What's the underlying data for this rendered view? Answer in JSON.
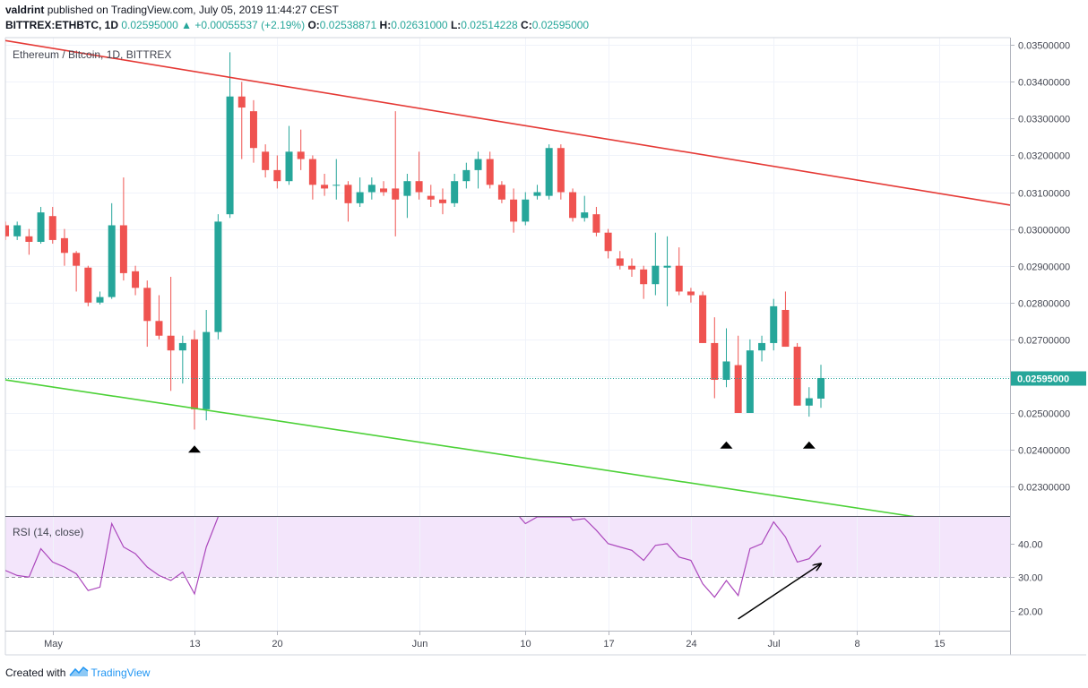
{
  "header": {
    "user": "valdrint",
    "published_text": "published on TradingView.com, July 05, 2019 11:44:27 CEST",
    "symbol": "BITTREX:ETHBTC, 1D",
    "last": "0.02595000",
    "change": "+0.00055537 (+2.19%)",
    "open_label": "O:",
    "open": "0.02538871",
    "high_label": "H:",
    "high": "0.02631000",
    "low_label": "L:",
    "low": "0.02514228",
    "close_label": "C:",
    "close": "0.02595000"
  },
  "footer": {
    "created_with": "Created with",
    "brand": "TradingView"
  },
  "colors": {
    "up": "#26a69a",
    "down": "#ef5350",
    "resistance": "#e53935",
    "support": "#4cd137",
    "rsi_line": "#ab47bc",
    "rsi_band": "#f3e5fb",
    "price_line": "#26a69a",
    "marker": "#000000",
    "arrow": "#000000"
  },
  "chart_data": [
    {
      "type": "candlestick",
      "title": "Ethereum / Bitcoin, 1D, BITTREX",
      "ylim": [
        0.0222,
        0.0352
      ],
      "y_ticks": [
        0.023,
        0.024,
        0.025,
        0.026,
        0.027,
        0.028,
        0.029,
        0.03,
        0.031,
        0.032,
        0.033,
        0.034,
        0.035
      ],
      "y_tick_labels": [
        "0.02300000",
        "0.02400000",
        "0.02500000",
        "0.02600000",
        "0.02700000",
        "0.02800000",
        "0.02900000",
        "0.03000000",
        "0.03100000",
        "0.03200000",
        "0.03300000",
        "0.03400000",
        "0.03500000"
      ],
      "x_tick_labels": [
        {
          "day": 1,
          "label": "May"
        },
        {
          "day": 13,
          "label": "13"
        },
        {
          "day": 20,
          "label": "20"
        },
        {
          "day": 32,
          "label": "Jun"
        },
        {
          "day": 41,
          "label": "10"
        },
        {
          "day": 48,
          "label": "17"
        },
        {
          "day": 55,
          "label": "24"
        },
        {
          "day": 62,
          "label": "Jul"
        },
        {
          "day": 69,
          "label": "8"
        },
        {
          "day": 76,
          "label": "15"
        }
      ],
      "x_range_days": [
        -3,
        82
      ],
      "current_price": 0.02595,
      "current_price_label": "0.02595000",
      "candles": [
        {
          "d": -3,
          "o": 0.0301,
          "h": 0.0302,
          "l": 0.0297,
          "c": 0.0298
        },
        {
          "d": -2,
          "o": 0.0298,
          "h": 0.0302,
          "l": 0.0297,
          "c": 0.0301
        },
        {
          "d": -1,
          "o": 0.0298,
          "h": 0.03,
          "l": 0.0293,
          "c": 0.02965
        },
        {
          "d": 0,
          "o": 0.02965,
          "h": 0.0306,
          "l": 0.0296,
          "c": 0.03045
        },
        {
          "d": 1,
          "o": 0.03035,
          "h": 0.0306,
          "l": 0.0296,
          "c": 0.0297
        },
        {
          "d": 2,
          "o": 0.02975,
          "h": 0.03,
          "l": 0.029,
          "c": 0.02935
        },
        {
          "d": 3,
          "o": 0.02935,
          "h": 0.0294,
          "l": 0.0283,
          "c": 0.029
        },
        {
          "d": 4,
          "o": 0.02895,
          "h": 0.029,
          "l": 0.0279,
          "c": 0.028
        },
        {
          "d": 5,
          "o": 0.028,
          "h": 0.0283,
          "l": 0.02795,
          "c": 0.02815
        },
        {
          "d": 6,
          "o": 0.02815,
          "h": 0.0307,
          "l": 0.0281,
          "c": 0.0301
        },
        {
          "d": 7,
          "o": 0.0301,
          "h": 0.0314,
          "l": 0.0286,
          "c": 0.0288
        },
        {
          "d": 8,
          "o": 0.02885,
          "h": 0.029,
          "l": 0.0282,
          "c": 0.0284
        },
        {
          "d": 9,
          "o": 0.0284,
          "h": 0.0286,
          "l": 0.0268,
          "c": 0.0275
        },
        {
          "d": 10,
          "o": 0.0275,
          "h": 0.0282,
          "l": 0.027,
          "c": 0.0271
        },
        {
          "d": 11,
          "o": 0.0271,
          "h": 0.0287,
          "l": 0.0256,
          "c": 0.0267
        },
        {
          "d": 12,
          "o": 0.0267,
          "h": 0.0271,
          "l": 0.0258,
          "c": 0.0269
        },
        {
          "d": 13,
          "o": 0.027,
          "h": 0.02725,
          "l": 0.02455,
          "c": 0.0251
        },
        {
          "d": 14,
          "o": 0.0251,
          "h": 0.0278,
          "l": 0.0248,
          "c": 0.0272
        },
        {
          "d": 15,
          "o": 0.0272,
          "h": 0.0304,
          "l": 0.027,
          "c": 0.0302
        },
        {
          "d": 16,
          "o": 0.0304,
          "h": 0.0348,
          "l": 0.0303,
          "c": 0.0336
        },
        {
          "d": 17,
          "o": 0.0336,
          "h": 0.034,
          "l": 0.0319,
          "c": 0.0333
        },
        {
          "d": 18,
          "o": 0.0332,
          "h": 0.0335,
          "l": 0.0318,
          "c": 0.0322
        },
        {
          "d": 19,
          "o": 0.0321,
          "h": 0.0323,
          "l": 0.0314,
          "c": 0.0316
        },
        {
          "d": 20,
          "o": 0.0316,
          "h": 0.032,
          "l": 0.0311,
          "c": 0.0313
        },
        {
          "d": 21,
          "o": 0.0313,
          "h": 0.0328,
          "l": 0.0312,
          "c": 0.0321
        },
        {
          "d": 22,
          "o": 0.0321,
          "h": 0.0327,
          "l": 0.0316,
          "c": 0.0319
        },
        {
          "d": 23,
          "o": 0.0319,
          "h": 0.032,
          "l": 0.0308,
          "c": 0.0312
        },
        {
          "d": 24,
          "o": 0.0312,
          "h": 0.0315,
          "l": 0.0309,
          "c": 0.0311
        },
        {
          "d": 25,
          "o": 0.0312,
          "h": 0.0319,
          "l": 0.0308,
          "c": 0.0312
        },
        {
          "d": 26,
          "o": 0.0312,
          "h": 0.0313,
          "l": 0.0302,
          "c": 0.0307
        },
        {
          "d": 27,
          "o": 0.0307,
          "h": 0.0314,
          "l": 0.0306,
          "c": 0.031
        },
        {
          "d": 28,
          "o": 0.031,
          "h": 0.0314,
          "l": 0.0308,
          "c": 0.0312
        },
        {
          "d": 29,
          "o": 0.0311,
          "h": 0.0313,
          "l": 0.0309,
          "c": 0.031
        },
        {
          "d": 30,
          "o": 0.0311,
          "h": 0.0332,
          "l": 0.0298,
          "c": 0.0308
        },
        {
          "d": 31,
          "o": 0.0309,
          "h": 0.0315,
          "l": 0.0303,
          "c": 0.0313
        },
        {
          "d": 32,
          "o": 0.0313,
          "h": 0.0321,
          "l": 0.0308,
          "c": 0.031
        },
        {
          "d": 33,
          "o": 0.0309,
          "h": 0.0312,
          "l": 0.0306,
          "c": 0.0308
        },
        {
          "d": 34,
          "o": 0.0308,
          "h": 0.0311,
          "l": 0.0304,
          "c": 0.0307
        },
        {
          "d": 35,
          "o": 0.0307,
          "h": 0.0315,
          "l": 0.0306,
          "c": 0.0313
        },
        {
          "d": 36,
          "o": 0.0313,
          "h": 0.0318,
          "l": 0.0311,
          "c": 0.0316
        },
        {
          "d": 37,
          "o": 0.0316,
          "h": 0.0321,
          "l": 0.0311,
          "c": 0.0319
        },
        {
          "d": 38,
          "o": 0.0319,
          "h": 0.0321,
          "l": 0.0311,
          "c": 0.0312
        },
        {
          "d": 39,
          "o": 0.0312,
          "h": 0.0313,
          "l": 0.0307,
          "c": 0.0308
        },
        {
          "d": 40,
          "o": 0.0308,
          "h": 0.0311,
          "l": 0.0299,
          "c": 0.0302
        },
        {
          "d": 41,
          "o": 0.0302,
          "h": 0.031,
          "l": 0.0301,
          "c": 0.0308
        },
        {
          "d": 42,
          "o": 0.0309,
          "h": 0.0312,
          "l": 0.0308,
          "c": 0.031
        },
        {
          "d": 43,
          "o": 0.0309,
          "h": 0.0323,
          "l": 0.0308,
          "c": 0.0322
        },
        {
          "d": 44,
          "o": 0.0322,
          "h": 0.0323,
          "l": 0.0308,
          "c": 0.031
        },
        {
          "d": 45,
          "o": 0.031,
          "h": 0.0311,
          "l": 0.0302,
          "c": 0.0303
        },
        {
          "d": 46,
          "o": 0.0303,
          "h": 0.0309,
          "l": 0.0302,
          "c": 0.03045
        },
        {
          "d": 47,
          "o": 0.0304,
          "h": 0.0306,
          "l": 0.0298,
          "c": 0.0299
        },
        {
          "d": 48,
          "o": 0.0299,
          "h": 0.03,
          "l": 0.0292,
          "c": 0.0294
        },
        {
          "d": 49,
          "o": 0.0292,
          "h": 0.0294,
          "l": 0.0289,
          "c": 0.029
        },
        {
          "d": 50,
          "o": 0.029,
          "h": 0.0292,
          "l": 0.0287,
          "c": 0.0289
        },
        {
          "d": 51,
          "o": 0.0289,
          "h": 0.029,
          "l": 0.0281,
          "c": 0.0285
        },
        {
          "d": 52,
          "o": 0.0285,
          "h": 0.0299,
          "l": 0.0282,
          "c": 0.029
        },
        {
          "d": 53,
          "o": 0.02895,
          "h": 0.0298,
          "l": 0.0279,
          "c": 0.029
        },
        {
          "d": 54,
          "o": 0.029,
          "h": 0.0295,
          "l": 0.0282,
          "c": 0.0283
        },
        {
          "d": 55,
          "o": 0.0283,
          "h": 0.0284,
          "l": 0.028,
          "c": 0.0282
        },
        {
          "d": 56,
          "o": 0.0282,
          "h": 0.0283,
          "l": 0.0269,
          "c": 0.0269
        },
        {
          "d": 57,
          "o": 0.0269,
          "h": 0.0276,
          "l": 0.0254,
          "c": 0.0259
        },
        {
          "d": 58,
          "o": 0.0259,
          "h": 0.0273,
          "l": 0.0257,
          "c": 0.0264
        },
        {
          "d": 59,
          "o": 0.0263,
          "h": 0.0271,
          "l": 0.025,
          "c": 0.025
        },
        {
          "d": 60,
          "o": 0.025,
          "h": 0.027,
          "l": 0.025,
          "c": 0.0267
        },
        {
          "d": 61,
          "o": 0.0267,
          "h": 0.0271,
          "l": 0.0264,
          "c": 0.0269
        },
        {
          "d": 62,
          "o": 0.0269,
          "h": 0.0281,
          "l": 0.0267,
          "c": 0.0279
        },
        {
          "d": 63,
          "o": 0.0278,
          "h": 0.0283,
          "l": 0.0268,
          "c": 0.0268
        },
        {
          "d": 64,
          "o": 0.0268,
          "h": 0.0269,
          "l": 0.0252,
          "c": 0.0252
        },
        {
          "d": 65,
          "o": 0.0252,
          "h": 0.0257,
          "l": 0.0249,
          "c": 0.0254
        },
        {
          "d": 66,
          "o": 0.02539,
          "h": 0.02631,
          "l": 0.02514,
          "c": 0.02595
        }
      ],
      "trendlines": [
        {
          "name": "resistance",
          "x": [
            -3,
            82
          ],
          "y": [
            0.03512,
            0.03065
          ]
        },
        {
          "name": "support",
          "x": [
            -3,
            75.6
          ],
          "y": [
            0.0259,
            0.0221
          ]
        }
      ],
      "markers": [
        {
          "d": 13,
          "y": 0.02402
        },
        {
          "d": 58,
          "y": 0.02413
        },
        {
          "d": 65,
          "y": 0.02413
        }
      ]
    },
    {
      "type": "line",
      "title": "RSI (14, close)",
      "ylim": [
        14,
        48
      ],
      "y_ticks": [
        20,
        30,
        40
      ],
      "y_tick_labels": [
        "20.00",
        "30.00",
        "40.00"
      ],
      "band": [
        30,
        48
      ],
      "dashed_level": 30,
      "series": [
        {
          "values": [
            {
              "d": -3,
              "v": 32
            },
            {
              "d": -2,
              "v": 30.5
            },
            {
              "d": -1,
              "v": 30
            },
            {
              "d": 0,
              "v": 38.5
            },
            {
              "d": 1,
              "v": 34.5
            },
            {
              "d": 2,
              "v": 33
            },
            {
              "d": 3,
              "v": 31
            },
            {
              "d": 4,
              "v": 26
            },
            {
              "d": 5,
              "v": 27
            },
            {
              "d": 6,
              "v": 46
            },
            {
              "d": 7,
              "v": 39
            },
            {
              "d": 8,
              "v": 37
            },
            {
              "d": 9,
              "v": 33
            },
            {
              "d": 10,
              "v": 30.5
            },
            {
              "d": 11,
              "v": 29
            },
            {
              "d": 12,
              "v": 31.5
            },
            {
              "d": 13,
              "v": 25
            },
            {
              "d": 14,
              "v": 39
            },
            {
              "d": 15,
              "v": 48
            },
            {
              "d": 40.5,
              "v": 48
            },
            {
              "d": 41,
              "v": 46
            },
            {
              "d": 42,
              "v": 48
            },
            {
              "d": 44.8,
              "v": 48
            },
            {
              "d": 45,
              "v": 47
            },
            {
              "d": 46,
              "v": 47.5
            },
            {
              "d": 47,
              "v": 44
            },
            {
              "d": 48,
              "v": 40
            },
            {
              "d": 49,
              "v": 39
            },
            {
              "d": 50,
              "v": 38
            },
            {
              "d": 51,
              "v": 35
            },
            {
              "d": 52,
              "v": 39.5
            },
            {
              "d": 53,
              "v": 40
            },
            {
              "d": 54,
              "v": 36
            },
            {
              "d": 55,
              "v": 35
            },
            {
              "d": 56,
              "v": 28
            },
            {
              "d": 57,
              "v": 24
            },
            {
              "d": 58,
              "v": 29
            },
            {
              "d": 59,
              "v": 24.5
            },
            {
              "d": 60,
              "v": 38.5
            },
            {
              "d": 61,
              "v": 40
            },
            {
              "d": 62,
              "v": 46.5
            },
            {
              "d": 63,
              "v": 42
            },
            {
              "d": 64,
              "v": 34.5
            },
            {
              "d": 65,
              "v": 35.5
            },
            {
              "d": 66,
              "v": 39.5
            }
          ]
        }
      ],
      "arrow": {
        "from": {
          "d": 59,
          "v": 17.5
        },
        "to": {
          "d": 66,
          "v": 34
        }
      }
    }
  ]
}
